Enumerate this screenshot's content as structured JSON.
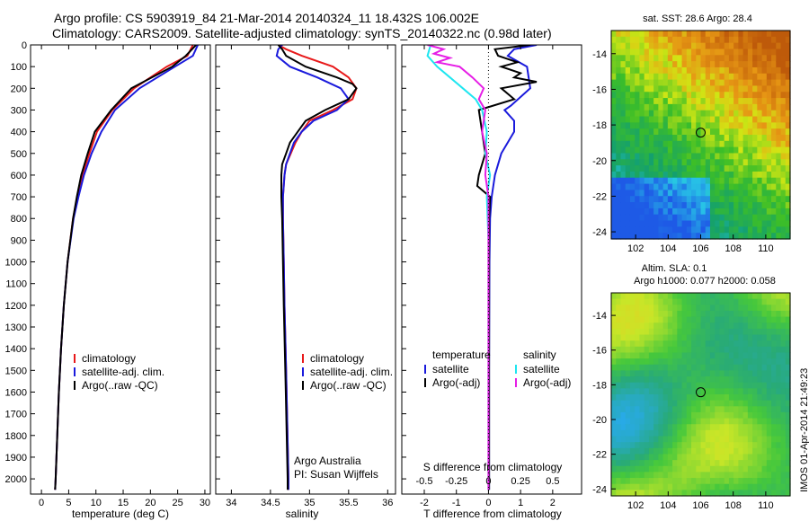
{
  "title_line1": "Argo profile: CS 5903919_84 21-Mar-2014 20140324_11 18.432S 106.002E",
  "title_line2": "Climatology: CARS2009. Satellite-adjusted climatology: synTS_20140322.nc (0.98d later)",
  "side_stamp": "IMOS 01-Apr-2014 21:49:23",
  "colors": {
    "red": "#e8191a",
    "blue": "#1a1adc",
    "black": "#000000",
    "cyan": "#1ee6f0",
    "magenta": "#e61ee6"
  },
  "chart_data": [
    {
      "type": "line",
      "name": "temperature",
      "xlabel": "temperature (deg C)",
      "xlim": [
        -2,
        31
      ],
      "ylim": [
        2070,
        0
      ],
      "xticks": [
        "0",
        "5",
        "10",
        "15",
        "20",
        "25",
        "30"
      ],
      "yticks": [
        "0",
        "100",
        "200",
        "300",
        "400",
        "500",
        "600",
        "700",
        "800",
        "900",
        "1000",
        "1100",
        "1200",
        "1300",
        "1400",
        "1500",
        "1600",
        "1700",
        "1800",
        "1900",
        "2000"
      ],
      "legend": [
        "climatology",
        "satellite-adj. clim.",
        "Argo(..raw -QC)"
      ],
      "series": [
        {
          "name": "climatology",
          "color": "red",
          "depth": [
            0,
            50,
            100,
            200,
            300,
            400,
            500,
            600,
            700,
            800,
            1000,
            1200,
            1400,
            1600,
            1800,
            2000,
            2050
          ],
          "values": [
            27.8,
            26.8,
            23,
            17,
            13,
            10.2,
            8.8,
            7.5,
            6.6,
            5.8,
            4.8,
            4.1,
            3.6,
            3.2,
            2.9,
            2.6,
            2.5
          ]
        },
        {
          "name": "satellite-adj. clim.",
          "color": "blue",
          "depth": [
            0,
            50,
            100,
            200,
            300,
            400,
            500,
            600,
            700,
            800,
            1000,
            1200,
            1400,
            1600,
            1800,
            2000,
            2050
          ],
          "values": [
            28.7,
            27.8,
            24.5,
            18,
            13.5,
            11,
            9.2,
            7.8,
            6.8,
            5.9,
            4.8,
            4.1,
            3.6,
            3.2,
            2.9,
            2.6,
            2.5
          ]
        },
        {
          "name": "Argo(..raw -QC)",
          "color": "black",
          "depth": [
            0,
            50,
            100,
            200,
            300,
            400,
            500,
            600,
            700,
            800,
            1000,
            1200,
            1400,
            1600,
            1800,
            2000,
            2050
          ],
          "values": [
            28.4,
            26.5,
            24,
            16.5,
            12.8,
            9.8,
            8.5,
            7.3,
            6.5,
            5.8,
            4.8,
            4.1,
            3.6,
            3.2,
            2.9,
            2.6,
            2.5
          ]
        }
      ]
    },
    {
      "type": "line",
      "name": "salinity",
      "xlabel": "salinity",
      "xlim": [
        33.8,
        36.1
      ],
      "ylim": [
        2070,
        0
      ],
      "xticks": [
        "34",
        "34.5",
        "35",
        "35.5",
        "36"
      ],
      "legend": [
        "climatology",
        "satellite-adj. clim.",
        "Argo(..raw -QC)"
      ],
      "annotation": [
        "Argo Australia",
        "PI: Susan Wijffels"
      ],
      "series": [
        {
          "name": "climatology",
          "color": "red",
          "depth": [
            0,
            20,
            50,
            100,
            150,
            200,
            250,
            300,
            350,
            400,
            450,
            500,
            550,
            600,
            700,
            800,
            1000,
            1200,
            1500,
            2000,
            2050
          ],
          "values": [
            34.6,
            34.7,
            34.9,
            35.3,
            35.5,
            35.6,
            35.55,
            35.3,
            35,
            34.9,
            34.82,
            34.76,
            34.7,
            34.68,
            34.66,
            34.66,
            34.67,
            34.68,
            34.7,
            34.73,
            34.73
          ]
        },
        {
          "name": "satellite-adj. clim.",
          "color": "blue",
          "depth": [
            0,
            20,
            50,
            100,
            150,
            200,
            250,
            300,
            350,
            400,
            450,
            500,
            550,
            600,
            700,
            800,
            1000,
            1200,
            1500,
            2000,
            2050
          ],
          "values": [
            34.65,
            34.6,
            34.58,
            34.75,
            35.1,
            35.4,
            35.5,
            35.35,
            35.05,
            34.9,
            34.8,
            34.75,
            34.7,
            34.68,
            34.66,
            34.66,
            34.67,
            34.68,
            34.7,
            34.73,
            34.73
          ]
        },
        {
          "name": "Argo(..raw -QC)",
          "color": "black",
          "depth": [
            0,
            20,
            50,
            100,
            150,
            180,
            200,
            250,
            300,
            350,
            400,
            450,
            500,
            550,
            600,
            700,
            800,
            1000,
            1200,
            1500,
            2000,
            2050
          ],
          "values": [
            34.6,
            34.65,
            34.7,
            34.95,
            35.35,
            35.55,
            35.6,
            35.5,
            35.2,
            34.95,
            34.85,
            34.75,
            34.7,
            34.65,
            34.64,
            34.64,
            34.65,
            34.66,
            34.67,
            34.69,
            34.72,
            34.72
          ]
        }
      ]
    },
    {
      "type": "line",
      "name": "difference",
      "xlabel": "T difference from climatology",
      "xlabel_top": "S difference from climatology",
      "xlim": [
        -2.7,
        2.9
      ],
      "ylim": [
        2070,
        0
      ],
      "xticks": [
        "-2",
        "-1",
        "0",
        "1",
        "2"
      ],
      "xticks_top": [
        "-0.5",
        "-0.25",
        "0",
        "0.25",
        "0.5"
      ],
      "legend_left_title": "temperature",
      "legend_left": [
        "satellite",
        "Argo(-adj)"
      ],
      "legend_right_title": "salinity",
      "legend_right": [
        "satellite",
        "Argo(-adj)"
      ],
      "series": [
        {
          "name": "T satellite",
          "color": "blue",
          "depth": [
            0,
            20,
            50,
            100,
            200,
            280,
            300,
            350,
            400,
            500,
            600,
            700,
            800,
            1000,
            1500,
            2000,
            2050
          ],
          "values": [
            1.5,
            0.8,
            0.6,
            1.2,
            1.3,
            0.7,
            0.5,
            0.8,
            0.8,
            0.4,
            0.2,
            0.1,
            0.05,
            0.03,
            0.02,
            0.02,
            0.02
          ]
        },
        {
          "name": "T Argo(-adj)",
          "color": "black",
          "depth": [
            0,
            20,
            50,
            80,
            100,
            130,
            150,
            170,
            200,
            250,
            300,
            400,
            500,
            600,
            650,
            700,
            800,
            1000,
            1500,
            2000,
            2050
          ],
          "values": [
            1.3,
            0.2,
            0.3,
            0.9,
            0.4,
            1,
            0.8,
            1.5,
            0.4,
            0.8,
            -0.3,
            -0.2,
            -0.1,
            -0.3,
            -0.35,
            0.05,
            0.02,
            0.02,
            0.02,
            0.02,
            0.02
          ]
        },
        {
          "name": "S satellite",
          "color": "cyan",
          "depth": [
            0,
            50,
            100,
            150,
            200,
            250,
            300,
            400,
            500,
            600,
            700,
            900,
            1500,
            2050
          ],
          "values": [
            -1.8,
            -1.9,
            -1.6,
            -1.2,
            -0.8,
            -0.4,
            -0.2,
            -0.05,
            -0.1,
            0.05,
            -0.05,
            0,
            0,
            0
          ]
        },
        {
          "name": "S Argo(-adj)",
          "color": "magenta",
          "depth": [
            0,
            20,
            40,
            60,
            80,
            100,
            150,
            200,
            250,
            300,
            400,
            500,
            600,
            700,
            800,
            1500,
            2050
          ],
          "values": [
            -1.9,
            -1.4,
            -1.7,
            -1.2,
            -1.6,
            -0.9,
            -0.5,
            -0.15,
            -0.3,
            -0.1,
            -0.2,
            -0.05,
            -0.1,
            0,
            0,
            0,
            0
          ]
        }
      ]
    },
    {
      "type": "heatmap",
      "name": "sst-map",
      "title": "sat. SST: 28.6  Argo: 28.4",
      "xlim": [
        100.5,
        111.5
      ],
      "ylim": [
        -24.4,
        -12.7
      ],
      "xticks": [
        "102",
        "104",
        "106",
        "108",
        "110"
      ],
      "yticks": [
        "-14",
        "-16",
        "-18",
        "-20",
        "-22",
        "-24"
      ],
      "marker": {
        "lon": 106.0,
        "lat": -18.43
      }
    },
    {
      "type": "heatmap",
      "name": "sla-map",
      "title_line1": "Altim. SLA: 0.1",
      "title_line2": "Argo h1000: 0.077  h2000: 0.058",
      "xlim": [
        100.5,
        111.5
      ],
      "ylim": [
        -24.4,
        -12.7
      ],
      "xticks": [
        "102",
        "104",
        "106",
        "108",
        "110"
      ],
      "yticks": [
        "-14",
        "-16",
        "-18",
        "-20",
        "-22",
        "-24"
      ],
      "marker": {
        "lon": 106.0,
        "lat": -18.43
      }
    }
  ]
}
